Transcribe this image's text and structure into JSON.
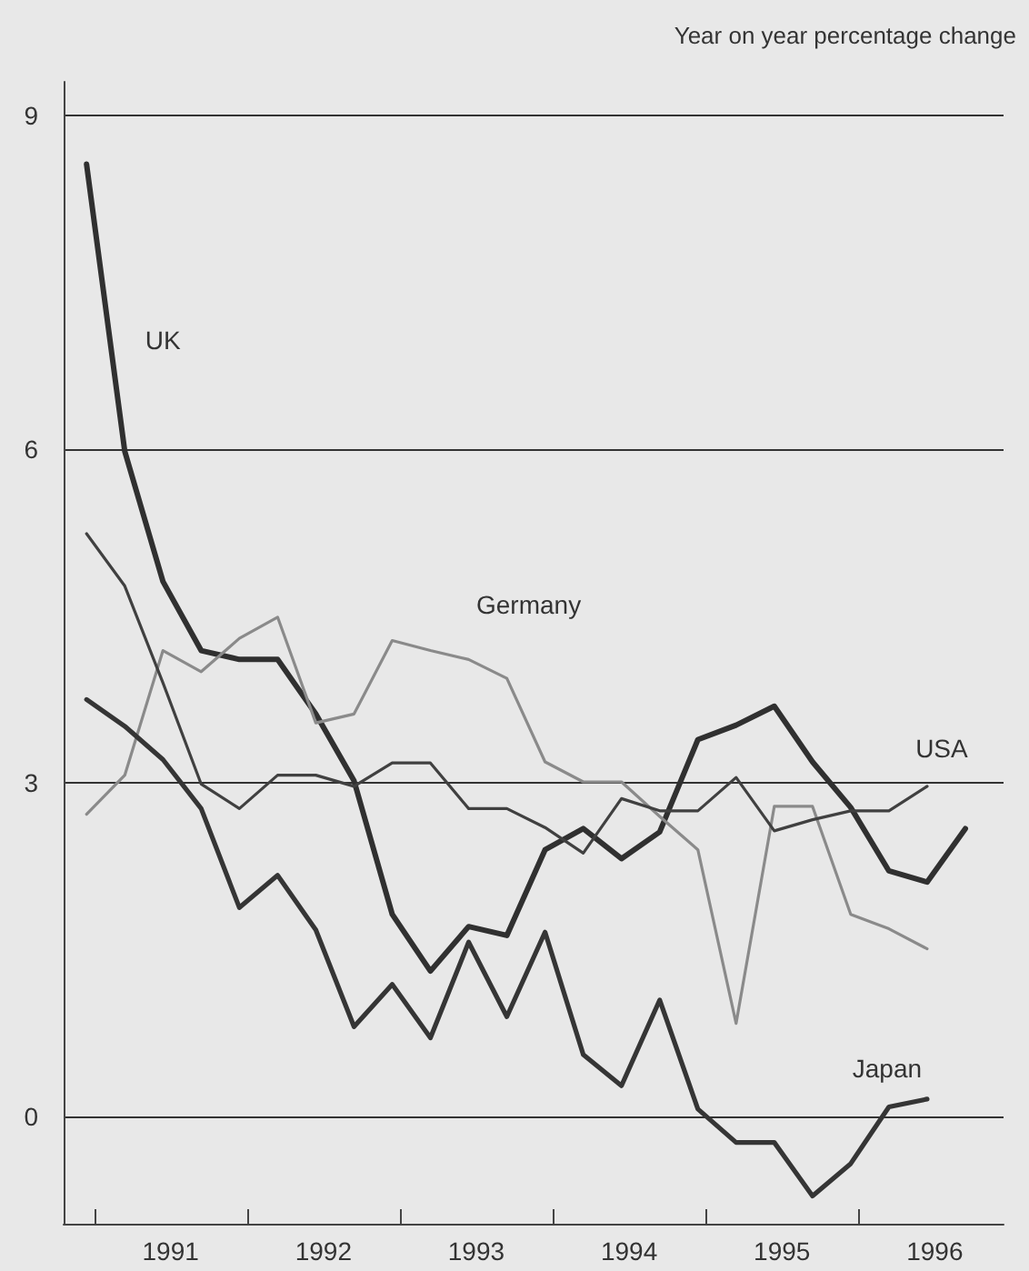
{
  "chart_data": {
    "type": "line",
    "ylabel": "Year on year percentage change",
    "x": [
      1990.95,
      1991.2,
      1991.45,
      1991.7,
      1991.95,
      1992.2,
      1992.45,
      1992.7,
      1992.95,
      1993.2,
      1993.45,
      1993.7,
      1993.95,
      1994.2,
      1994.45,
      1994.7,
      1994.95,
      1995.2,
      1995.45,
      1995.7,
      1995.95,
      1996.2,
      1996.45,
      1996.7
    ],
    "series": [
      {
        "name": "UK",
        "color": "#303030",
        "values": [
          8.56,
          5.98,
          4.81,
          4.19,
          4.11,
          4.11,
          3.62,
          3.02,
          1.82,
          1.31,
          1.71,
          1.63,
          2.4,
          2.59,
          2.32,
          2.56,
          3.39,
          3.52,
          3.69,
          3.19,
          2.78,
          2.21,
          2.11,
          2.59
        ]
      },
      {
        "name": "Germany",
        "color": "#8a8a8a",
        "values": [
          2.72,
          3.07,
          4.19,
          4.0,
          4.3,
          4.49,
          3.54,
          3.62,
          4.28,
          4.19,
          4.11,
          3.94,
          3.19,
          3.01,
          3.01,
          2.7,
          2.4,
          0.84,
          2.79,
          2.79,
          1.82,
          1.69,
          1.51,
          null
        ]
      },
      {
        "name": "USA",
        "color": "#404040",
        "values": [
          5.24,
          4.77,
          3.9,
          2.99,
          2.77,
          3.07,
          3.07,
          2.97,
          3.18,
          3.18,
          2.77,
          2.77,
          2.6,
          2.37,
          2.86,
          2.75,
          2.75,
          3.05,
          2.57,
          2.67,
          2.75,
          2.75,
          2.97,
          null
        ]
      },
      {
        "name": "Japan",
        "color": "#353535",
        "values": [
          3.75,
          3.51,
          3.21,
          2.77,
          1.88,
          2.17,
          1.68,
          0.81,
          1.19,
          0.71,
          1.57,
          0.9,
          1.66,
          0.56,
          0.28,
          1.05,
          0.07,
          -0.23,
          -0.23,
          -0.71,
          -0.42,
          0.09,
          0.16,
          null
        ]
      }
    ],
    "xlim": [
      1990.8,
      1996.95
    ],
    "xticks": [
      {
        "value": 1991,
        "label": null
      },
      {
        "value": 1991.5,
        "label": "1991"
      },
      {
        "value": 1992,
        "label": null
      },
      {
        "value": 1992.5,
        "label": "1992"
      },
      {
        "value": 1993,
        "label": null
      },
      {
        "value": 1993.5,
        "label": "1993"
      },
      {
        "value": 1994,
        "label": null
      },
      {
        "value": 1994.5,
        "label": "1994"
      },
      {
        "value": 1995,
        "label": null
      },
      {
        "value": 1995.5,
        "label": "1995"
      },
      {
        "value": 1996,
        "label": null
      },
      {
        "value": 1996.5,
        "label": "1996"
      }
    ],
    "ylim": [
      -0.96,
      9.3
    ],
    "yticks": [
      0,
      3,
      6,
      9
    ],
    "grid": "y",
    "legend": false,
    "marker": "none",
    "line_style": "solid"
  }
}
